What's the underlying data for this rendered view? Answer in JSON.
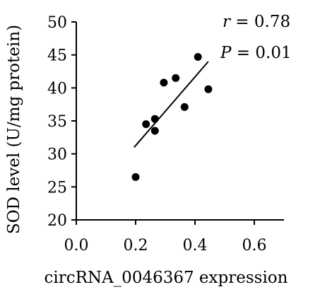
{
  "chart_data": {
    "type": "scatter",
    "xlabel": "circRNA_0046367 expression",
    "ylabel": "SOD level (U/mg protein)",
    "xlim": [
      0.0,
      0.7
    ],
    "ylim": [
      20,
      50
    ],
    "x_ticks": [
      "0.0",
      "0.2",
      "0.4",
      "0.6"
    ],
    "y_ticks": [
      "20",
      "25",
      "30",
      "35",
      "40",
      "45",
      "50"
    ],
    "grid": false,
    "points": [
      {
        "x": 0.2,
        "y": 26.5
      },
      {
        "x": 0.235,
        "y": 34.5
      },
      {
        "x": 0.265,
        "y": 35.3
      },
      {
        "x": 0.265,
        "y": 33.5
      },
      {
        "x": 0.295,
        "y": 40.8
      },
      {
        "x": 0.335,
        "y": 41.5
      },
      {
        "x": 0.365,
        "y": 37.1
      },
      {
        "x": 0.41,
        "y": 44.7
      },
      {
        "x": 0.445,
        "y": 39.8
      }
    ],
    "fit_line": {
      "x": [
        0.195,
        0.445
      ],
      "y": [
        31.0,
        44.0
      ]
    },
    "annotations": {
      "r_symbol": "r",
      "r_value": " = 0.78",
      "p_symbol": "P",
      "p_value": " = 0.01"
    }
  }
}
